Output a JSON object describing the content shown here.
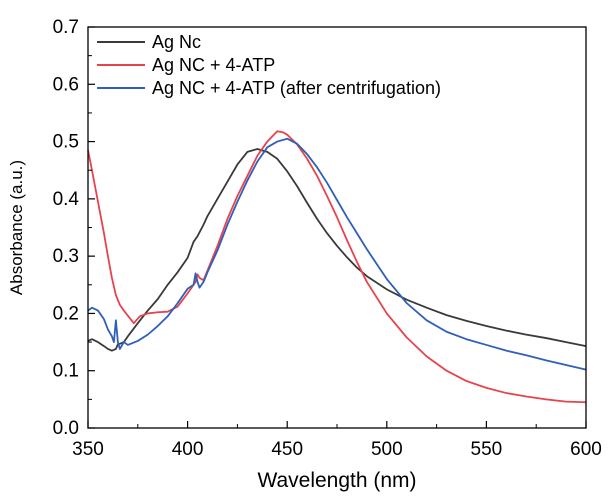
{
  "chart_data": {
    "type": "line",
    "title": "",
    "xlabel": "Wavelength (nm)",
    "ylabel": "Absorbance (a.u.)",
    "xlim": [
      350,
      600
    ],
    "ylim": [
      0.0,
      0.7
    ],
    "xticks": [
      350,
      400,
      450,
      500,
      550,
      600
    ],
    "xtick_labels": [
      "350",
      "400",
      "450",
      "500",
      "550",
      "600"
    ],
    "yticks": [
      0.0,
      0.1,
      0.2,
      0.3,
      0.4,
      0.5,
      0.6,
      0.7
    ],
    "ytick_labels": [
      "0.0",
      "0.1",
      "0.2",
      "0.3",
      "0.4",
      "0.5",
      "0.6",
      "0.7"
    ],
    "grid": false,
    "legend_position": "top-left",
    "series": [
      {
        "name": "Ag Nc",
        "color": "#3a3a3a",
        "x": [
          350,
          352,
          355,
          358,
          360,
          362,
          364,
          365,
          366,
          368,
          370,
          375,
          380,
          385,
          390,
          395,
          400,
          403,
          405,
          408,
          410,
          415,
          420,
          425,
          430,
          435,
          440,
          445,
          450,
          455,
          460,
          465,
          470,
          475,
          480,
          485,
          490,
          500,
          510,
          520,
          530,
          540,
          550,
          560,
          570,
          580,
          590,
          600
        ],
        "y": [
          0.152,
          0.155,
          0.15,
          0.143,
          0.138,
          0.135,
          0.138,
          0.146,
          0.147,
          0.15,
          0.16,
          0.183,
          0.205,
          0.225,
          0.25,
          0.272,
          0.297,
          0.325,
          0.335,
          0.355,
          0.37,
          0.4,
          0.43,
          0.46,
          0.482,
          0.487,
          0.482,
          0.47,
          0.448,
          0.422,
          0.393,
          0.365,
          0.34,
          0.318,
          0.298,
          0.28,
          0.265,
          0.242,
          0.224,
          0.21,
          0.197,
          0.187,
          0.178,
          0.17,
          0.163,
          0.157,
          0.15,
          0.143
        ]
      },
      {
        "name": "Ag NC + 4-ATP",
        "color": "#e8434c",
        "x": [
          350,
          352,
          355,
          358,
          360,
          362,
          364,
          366,
          368,
          370,
          373,
          376,
          380,
          385,
          390,
          395,
          400,
          404,
          405,
          406,
          408,
          410,
          415,
          420,
          425,
          430,
          435,
          440,
          445,
          448,
          450,
          455,
          460,
          465,
          470,
          475,
          480,
          485,
          490,
          500,
          510,
          520,
          530,
          540,
          550,
          560,
          570,
          580,
          590,
          600
        ],
        "y": [
          0.485,
          0.45,
          0.395,
          0.34,
          0.3,
          0.262,
          0.232,
          0.215,
          0.205,
          0.196,
          0.183,
          0.195,
          0.2,
          0.202,
          0.203,
          0.212,
          0.235,
          0.255,
          0.268,
          0.262,
          0.258,
          0.275,
          0.318,
          0.365,
          0.405,
          0.44,
          0.475,
          0.5,
          0.518,
          0.516,
          0.512,
          0.495,
          0.47,
          0.44,
          0.405,
          0.368,
          0.328,
          0.29,
          0.255,
          0.2,
          0.158,
          0.125,
          0.1,
          0.082,
          0.07,
          0.061,
          0.055,
          0.05,
          0.046,
          0.045
        ]
      },
      {
        "name": "Ag NC + 4-ATP (after centrifugation)",
        "color": "#2f5fb8",
        "x": [
          350,
          352,
          355,
          358,
          360,
          362,
          363,
          364,
          365,
          366,
          368,
          370,
          375,
          380,
          385,
          390,
          395,
          400,
          403,
          404,
          405,
          406,
          408,
          410,
          415,
          420,
          425,
          430,
          435,
          440,
          445,
          450,
          455,
          460,
          465,
          470,
          475,
          480,
          485,
          490,
          500,
          510,
          520,
          530,
          540,
          550,
          560,
          570,
          580,
          590,
          600
        ],
        "y": [
          0.205,
          0.21,
          0.205,
          0.19,
          0.172,
          0.16,
          0.15,
          0.188,
          0.15,
          0.138,
          0.15,
          0.145,
          0.152,
          0.163,
          0.178,
          0.195,
          0.218,
          0.243,
          0.25,
          0.27,
          0.255,
          0.245,
          0.255,
          0.272,
          0.31,
          0.355,
          0.395,
          0.432,
          0.465,
          0.49,
          0.5,
          0.505,
          0.496,
          0.478,
          0.455,
          0.428,
          0.398,
          0.368,
          0.34,
          0.312,
          0.26,
          0.218,
          0.188,
          0.168,
          0.155,
          0.145,
          0.135,
          0.127,
          0.118,
          0.11,
          0.102
        ]
      }
    ]
  }
}
